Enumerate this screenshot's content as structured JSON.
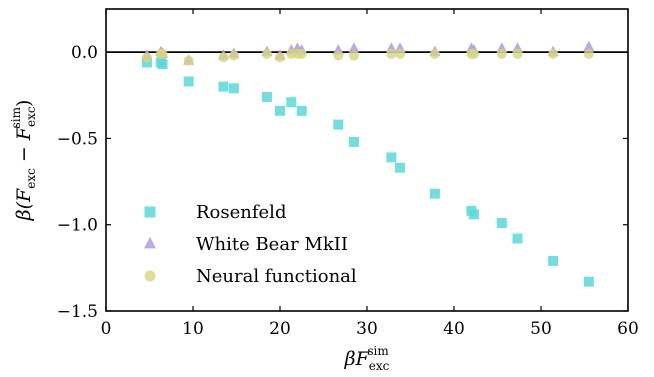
{
  "chart_data": {
    "type": "scatter",
    "xlabel": "βF_exc^sim",
    "ylabel": "β(F_exc − F_exc^sim)",
    "xlim": [
      0,
      60
    ],
    "ylim": [
      -1.5,
      0.25
    ],
    "x_ticks": [
      0,
      10,
      20,
      30,
      40,
      50,
      60
    ],
    "y_ticks": [
      0.0,
      -0.5,
      -1.0,
      -1.5
    ],
    "x_tick_labels": [
      "0",
      "10",
      "20",
      "30",
      "40",
      "50",
      "60"
    ],
    "y_tick_labels": [
      "0.0",
      "−0.5",
      "−1.0",
      "−1.5"
    ],
    "reference_line_y": 0.0,
    "legend_position": "lower-left",
    "series": [
      {
        "name": "Rosenfeld",
        "marker": "square",
        "color": "#5ad8d8",
        "points": [
          [
            4.7,
            -0.06
          ],
          [
            6.3,
            -0.06
          ],
          [
            6.5,
            -0.07
          ],
          [
            9.5,
            -0.17
          ],
          [
            13.5,
            -0.2
          ],
          [
            14.7,
            -0.21
          ],
          [
            18.5,
            -0.26
          ],
          [
            20.0,
            -0.34
          ],
          [
            21.3,
            -0.29
          ],
          [
            22.5,
            -0.34
          ],
          [
            26.7,
            -0.42
          ],
          [
            28.5,
            -0.52
          ],
          [
            32.8,
            -0.61
          ],
          [
            33.8,
            -0.67
          ],
          [
            37.8,
            -0.82
          ],
          [
            42.0,
            -0.92
          ],
          [
            42.3,
            -0.94
          ],
          [
            45.5,
            -0.99
          ],
          [
            47.3,
            -1.08
          ],
          [
            51.4,
            -1.21
          ],
          [
            55.5,
            -1.33
          ]
        ]
      },
      {
        "name": "White Bear MkII",
        "marker": "triangle",
        "color": "#b49ae0",
        "points": [
          [
            4.7,
            -0.02
          ],
          [
            6.3,
            0.0
          ],
          [
            6.5,
            -0.01
          ],
          [
            9.5,
            -0.05
          ],
          [
            13.5,
            -0.02
          ],
          [
            14.7,
            -0.01
          ],
          [
            18.5,
            0.0
          ],
          [
            20.0,
            -0.02
          ],
          [
            21.3,
            0.01
          ],
          [
            22.0,
            0.02
          ],
          [
            22.5,
            0.01
          ],
          [
            26.7,
            0.01
          ],
          [
            28.5,
            0.02
          ],
          [
            32.8,
            0.02
          ],
          [
            33.8,
            0.02
          ],
          [
            37.8,
            0.0
          ],
          [
            42.0,
            0.02
          ],
          [
            42.3,
            0.01
          ],
          [
            45.5,
            0.02
          ],
          [
            47.3,
            0.02
          ],
          [
            51.4,
            0.0
          ],
          [
            55.5,
            0.03
          ]
        ]
      },
      {
        "name": "Neural functional",
        "marker": "circle",
        "color": "#d6d67e",
        "points": [
          [
            4.7,
            -0.03
          ],
          [
            6.3,
            -0.01
          ],
          [
            6.5,
            -0.01
          ],
          [
            9.5,
            -0.05
          ],
          [
            13.5,
            -0.03
          ],
          [
            14.7,
            -0.02
          ],
          [
            18.5,
            -0.01
          ],
          [
            20.0,
            -0.03
          ],
          [
            21.3,
            -0.01
          ],
          [
            22.0,
            -0.01
          ],
          [
            22.5,
            -0.01
          ],
          [
            26.7,
            -0.02
          ],
          [
            28.5,
            -0.02
          ],
          [
            32.8,
            -0.01
          ],
          [
            33.8,
            -0.01
          ],
          [
            37.8,
            -0.01
          ],
          [
            42.0,
            -0.01
          ],
          [
            42.3,
            -0.01
          ],
          [
            45.5,
            -0.01
          ],
          [
            47.3,
            -0.01
          ],
          [
            51.4,
            -0.01
          ],
          [
            55.5,
            -0.01
          ]
        ]
      }
    ]
  }
}
